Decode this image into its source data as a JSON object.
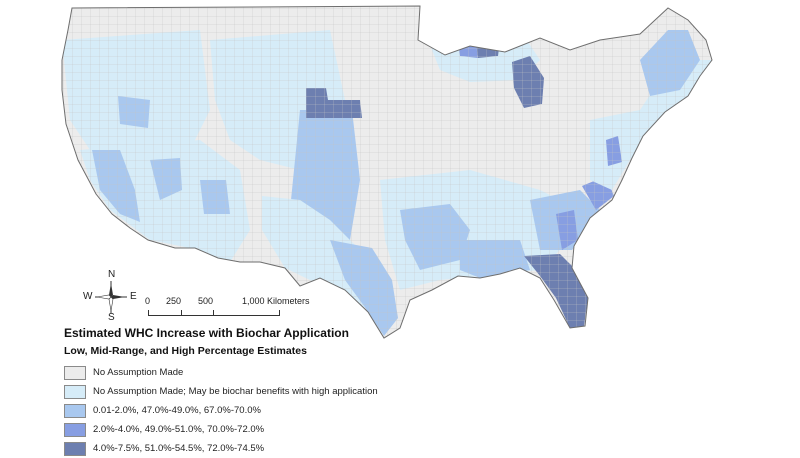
{
  "map": {
    "colors": {
      "outside": "#ffffff",
      "county_lines": "#bdbdbd",
      "state_lines": "#6e6e6e"
    }
  },
  "compass": {
    "n": "N",
    "s": "S",
    "e": "E",
    "w": "W"
  },
  "scale": {
    "labels": [
      "0",
      "250",
      "500",
      "1,000 Kilometers"
    ]
  },
  "legend": {
    "title": "Estimated WHC Increase with Biochar Application",
    "subtitle": "Low, Mid-Range, and High Percentage Estimates",
    "items": [
      {
        "label": "No Assumption Made",
        "color": "#ececec"
      },
      {
        "label": "No Assumption Made; May be biochar benefits with high application",
        "color": "#d6ecf8"
      },
      {
        "label": "0.01-2.0%, 47.0%-49.0%, 67.0%-70.0%",
        "color": "#a9c8ef"
      },
      {
        "label": "2.0%-4.0%, 49.0%-51.0%, 70.0%-72.0%",
        "color": "#879ee2"
      },
      {
        "label": "4.0%-7.5%, 51.0%-54.5%, 72.0%-74.5%",
        "color": "#6d7fb0"
      }
    ]
  }
}
